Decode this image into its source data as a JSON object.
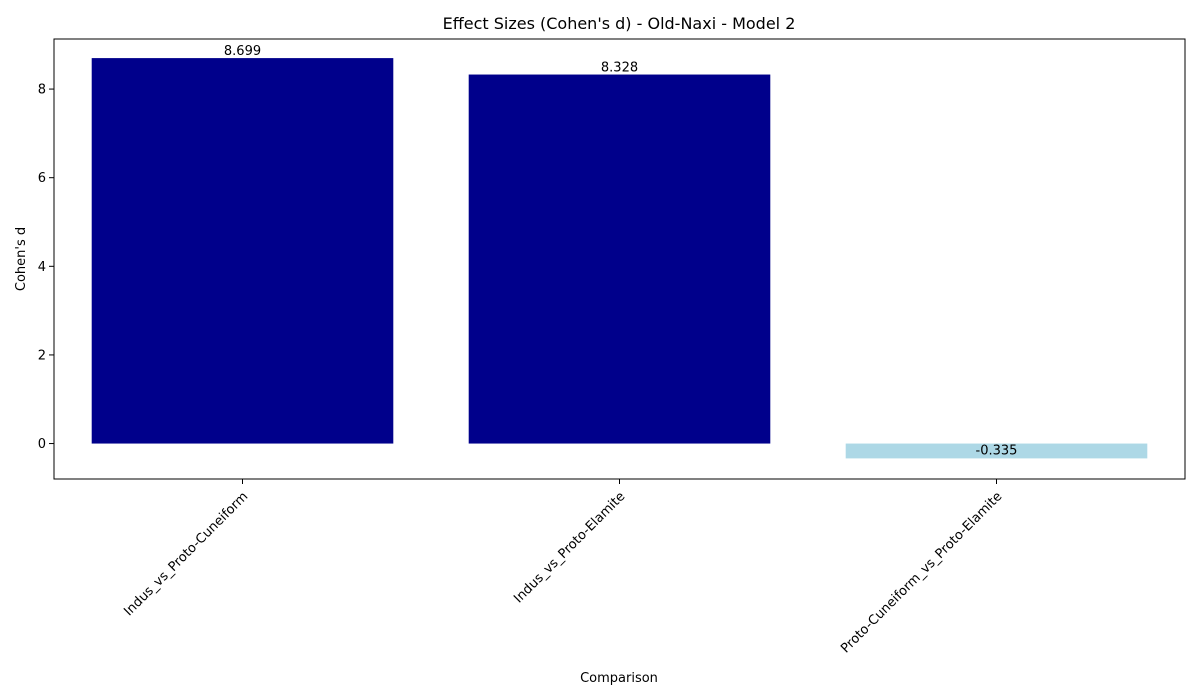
{
  "chart_data": {
    "type": "bar",
    "title": "Effect Sizes (Cohen's d) - Old-Naxi - Model 2",
    "xlabel": "Comparison",
    "ylabel": "Cohen's d",
    "categories": [
      "Indus_vs_Proto-Cuneiform",
      "Indus_vs_Proto-Elamite",
      "Proto-Cuneiform_vs_Proto-Elamite"
    ],
    "values": [
      8.699,
      8.328,
      -0.335
    ],
    "data_labels": [
      "8.699",
      "8.328",
      "-0.335"
    ],
    "bar_colors": [
      "#00008b",
      "#00008b",
      "#add8e6"
    ],
    "ylim": [
      -0.8,
      9.13
    ],
    "yticks": [
      0,
      2,
      4,
      6,
      8
    ],
    "ytick_labels": [
      "0",
      "2",
      "4",
      "6",
      "8"
    ],
    "grid": false,
    "legend": "none"
  }
}
